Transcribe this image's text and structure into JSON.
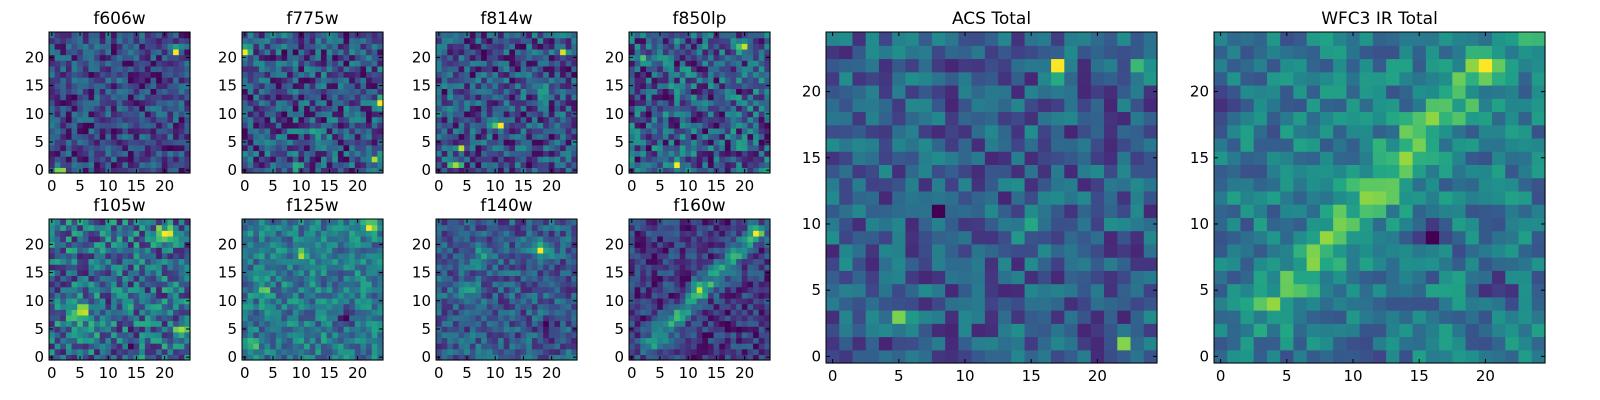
{
  "figure": {
    "background": "#ffffff",
    "colormap": "viridis"
  },
  "chart_data": [
    {
      "id": "f606w",
      "type": "heatmap",
      "title": "f606w",
      "grid_size": 25,
      "xlim": [
        0,
        24
      ],
      "ylim": [
        0,
        24
      ],
      "xticks": [
        0,
        5,
        10,
        15,
        20
      ],
      "yticks": [
        0,
        5,
        10,
        15,
        20
      ],
      "seed": 11,
      "base": 0.3,
      "features": [
        {
          "x": 1,
          "y": 0,
          "amp": 0.55,
          "sigma": 0.7
        },
        {
          "x": 2,
          "y": 0,
          "amp": 0.45,
          "sigma": 0.6
        },
        {
          "x": 22,
          "y": 21,
          "amp": 0.6,
          "sigma": 0.6
        },
        {
          "x": 12,
          "y": 16,
          "amp": 0.3,
          "sigma": 0.7
        }
      ]
    },
    {
      "id": "f775w",
      "type": "heatmap",
      "title": "f775w",
      "grid_size": 25,
      "xlim": [
        0,
        24
      ],
      "ylim": [
        0,
        24
      ],
      "xticks": [
        0,
        5,
        10,
        15,
        20
      ],
      "yticks": [
        0,
        5,
        10,
        15,
        20
      ],
      "seed": 23,
      "base": 0.34,
      "features": [
        {
          "x": 0,
          "y": 21,
          "amp": 0.5,
          "sigma": 0.7
        },
        {
          "x": 24,
          "y": 12,
          "amp": 0.55,
          "sigma": 0.6
        },
        {
          "x": 23,
          "y": 2,
          "amp": 0.45,
          "sigma": 0.7
        },
        {
          "x": 9,
          "y": 1,
          "amp": 0.45,
          "sigma": 0.6
        },
        {
          "x": 13,
          "y": 7,
          "amp": 0.35,
          "sigma": 0.7
        }
      ]
    },
    {
      "id": "f814w",
      "type": "heatmap",
      "title": "f814w",
      "grid_size": 25,
      "xlim": [
        0,
        24
      ],
      "ylim": [
        0,
        24
      ],
      "xticks": [
        0,
        5,
        10,
        15,
        20
      ],
      "yticks": [
        0,
        5,
        10,
        15,
        20
      ],
      "seed": 37,
      "base": 0.36,
      "features": [
        {
          "x": 3,
          "y": 1,
          "amp": 0.55,
          "sigma": 0.6
        },
        {
          "x": 22,
          "y": 21,
          "amp": 0.45,
          "sigma": 0.7
        },
        {
          "x": 11,
          "y": 8,
          "amp": 0.45,
          "sigma": 0.8
        },
        {
          "x": 18,
          "y": 14,
          "amp": 0.4,
          "sigma": 0.7
        },
        {
          "x": 4,
          "y": 4,
          "amp": 0.4,
          "sigma": 0.6
        }
      ]
    },
    {
      "id": "f850lp",
      "type": "heatmap",
      "title": "f850lp",
      "grid_size": 25,
      "xlim": [
        0,
        24
      ],
      "ylim": [
        0,
        24
      ],
      "xticks": [
        0,
        5,
        10,
        15,
        20
      ],
      "yticks": [
        0,
        5,
        10,
        15,
        20
      ],
      "seed": 51,
      "base": 0.28,
      "features": [
        {
          "x": 8,
          "y": 1,
          "amp": 0.6,
          "sigma": 0.6
        },
        {
          "x": 20,
          "y": 22,
          "amp": 0.4,
          "sigma": 0.7
        },
        {
          "x": 2,
          "y": 20,
          "amp": 0.3,
          "sigma": 0.7
        }
      ]
    },
    {
      "id": "f105w",
      "type": "heatmap",
      "title": "f105w",
      "grid_size": 25,
      "xlim": [
        0,
        24
      ],
      "ylim": [
        0,
        24
      ],
      "xticks": [
        0,
        5,
        10,
        15,
        20
      ],
      "yticks": [
        0,
        5,
        10,
        15,
        20
      ],
      "seed": 67,
      "base": 0.4,
      "features": [
        {
          "x": 20,
          "y": 22,
          "amp": 0.5,
          "sigma": 0.9
        },
        {
          "x": 5,
          "y": 8,
          "amp": 0.3,
          "sigma": 1.2
        },
        {
          "x": 14,
          "y": 3,
          "amp": -0.25,
          "sigma": 1.0
        },
        {
          "x": 23,
          "y": 5,
          "amp": 0.35,
          "sigma": 0.8
        }
      ]
    },
    {
      "id": "f125w",
      "type": "heatmap",
      "title": "f125w",
      "grid_size": 25,
      "xlim": [
        0,
        24
      ],
      "ylim": [
        0,
        24
      ],
      "xticks": [
        0,
        5,
        10,
        15,
        20
      ],
      "yticks": [
        0,
        5,
        10,
        15,
        20
      ],
      "seed": 79,
      "base": 0.45,
      "features": [
        {
          "x": 22,
          "y": 23,
          "amp": 0.45,
          "sigma": 1.0
        },
        {
          "x": 3,
          "y": 12,
          "amp": 0.4,
          "sigma": 0.9
        },
        {
          "x": 1,
          "y": 2,
          "amp": 0.4,
          "sigma": 0.8
        },
        {
          "x": 18,
          "y": 7,
          "amp": -0.3,
          "sigma": 1.0
        },
        {
          "x": 10,
          "y": 18,
          "amp": 0.3,
          "sigma": 1.0
        }
      ]
    },
    {
      "id": "f140w",
      "type": "heatmap",
      "title": "f140w",
      "grid_size": 25,
      "xlim": [
        0,
        24
      ],
      "ylim": [
        0,
        24
      ],
      "xticks": [
        0,
        5,
        10,
        15,
        20
      ],
      "yticks": [
        0,
        5,
        10,
        15,
        20
      ],
      "seed": 93,
      "base": 0.36,
      "features": [
        {
          "x": 18,
          "y": 19,
          "amp": 0.6,
          "sigma": 1.0
        },
        {
          "x": 5,
          "y": 12,
          "amp": 0.25,
          "sigma": 1.3
        },
        {
          "x": 7,
          "y": 18,
          "amp": 0.25,
          "sigma": 1.2
        },
        {
          "x": 20,
          "y": 5,
          "amp": -0.2,
          "sigma": 1.3
        }
      ]
    },
    {
      "id": "f160w",
      "type": "heatmap",
      "title": "f160w",
      "grid_size": 25,
      "xlim": [
        0,
        24
      ],
      "ylim": [
        0,
        24
      ],
      "xticks": [
        0,
        5,
        10,
        15,
        20
      ],
      "yticks": [
        0,
        5,
        10,
        15,
        20
      ],
      "seed": 107,
      "base": 0.34,
      "streak": {
        "x0": 3,
        "y0": 2,
        "x1": 22,
        "y1": 22,
        "amp": 0.45,
        "width": 1.2
      },
      "features": [
        {
          "x": 12,
          "y": 12,
          "amp": 0.3,
          "sigma": 1.0
        },
        {
          "x": 22,
          "y": 22,
          "amp": 0.35,
          "sigma": 0.9
        }
      ]
    },
    {
      "id": "acs-total",
      "type": "heatmap",
      "title": "ACS Total",
      "grid_size": 25,
      "xlim": [
        0,
        24
      ],
      "ylim": [
        0,
        24
      ],
      "xticks": [
        0,
        5,
        10,
        15,
        20
      ],
      "yticks": [
        0,
        5,
        10,
        15,
        20
      ],
      "seed": 131,
      "base": 0.38,
      "features": [
        {
          "x": 17,
          "y": 22,
          "amp": 0.6,
          "sigma": 0.6
        },
        {
          "x": 22,
          "y": 1,
          "amp": 0.5,
          "sigma": 0.6
        },
        {
          "x": 5,
          "y": 3,
          "amp": 0.45,
          "sigma": 0.6
        },
        {
          "x": 15,
          "y": 10,
          "amp": 0.3,
          "sigma": 0.9
        },
        {
          "x": 8,
          "y": 11,
          "amp": -0.4,
          "sigma": 0.5
        },
        {
          "x": 17,
          "y": 3,
          "amp": -0.35,
          "sigma": 0.5
        },
        {
          "x": 23,
          "y": 22,
          "amp": 0.3,
          "sigma": 0.8
        }
      ]
    },
    {
      "id": "wfc3-ir-total",
      "type": "heatmap",
      "title": "WFC3 IR Total",
      "grid_size": 25,
      "xlim": [
        0,
        24
      ],
      "ylim": [
        0,
        24
      ],
      "xticks": [
        0,
        5,
        10,
        15,
        20
      ],
      "yticks": [
        0,
        5,
        10,
        15,
        20
      ],
      "seed": 149,
      "base": 0.36,
      "streak": {
        "x0": 4,
        "y0": 4,
        "x1": 18,
        "y1": 20,
        "amp": 0.35,
        "width": 1.3
      },
      "features": [
        {
          "x": 20,
          "y": 22,
          "amp": 0.55,
          "sigma": 1.0
        },
        {
          "x": 23,
          "y": 24,
          "amp": 0.5,
          "sigma": 0.8
        },
        {
          "x": 12,
          "y": 12,
          "amp": 0.3,
          "sigma": 0.9
        },
        {
          "x": 0,
          "y": 19,
          "amp": -0.4,
          "sigma": 0.9
        },
        {
          "x": 3,
          "y": 14,
          "amp": -0.35,
          "sigma": 0.7
        },
        {
          "x": 16,
          "y": 9,
          "amp": -0.3,
          "sigma": 0.9
        },
        {
          "x": 21,
          "y": 5,
          "amp": -0.3,
          "sigma": 0.8
        },
        {
          "x": 11,
          "y": 0,
          "amp": -0.3,
          "sigma": 0.7
        }
      ]
    }
  ]
}
